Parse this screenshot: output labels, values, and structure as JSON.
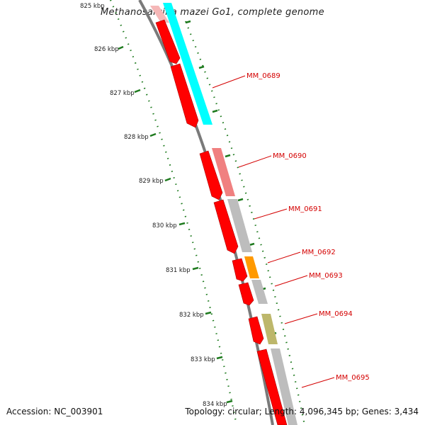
{
  "title": "Methanosarcina mazei Go1, complete genome",
  "footer": {
    "accession": "Accession: NC_003901",
    "summary": "Topology: circular; Length: 4,096,345 bp; Genes: 3,434"
  },
  "colors": {
    "cds": "#ff0000",
    "backbone": "#808080",
    "label": "#d40000",
    "tick": "#1e7a1e",
    "cog_cyan": "#00ffff",
    "cog_salmon": "#f08080",
    "cog_gray": "#bdbdbd",
    "cog_orange": "#ff9900",
    "cog_olive": "#bdb76b"
  },
  "ticks": [
    "825 kbp",
    "826 kbp",
    "827 kbp",
    "828 kbp",
    "829 kbp",
    "830 kbp",
    "831 kbp",
    "832 kbp",
    "833 kbp",
    "834 kbp"
  ],
  "genes": [
    {
      "label": "MM_0689",
      "cog_color": "#00ffff"
    },
    {
      "label": "MM_0690",
      "cog_color": "#f08080"
    },
    {
      "label": "MM_0691",
      "cog_color": "#bdbdbd"
    },
    {
      "label": "MM_0692",
      "cog_color": "#ff9900"
    },
    {
      "label": "MM_0693",
      "cog_color": "#bdbdbd"
    },
    {
      "label": "MM_0694",
      "cog_color": "#bdb76b"
    },
    {
      "label": "MM_0695",
      "cog_color": "#bdbdbd"
    }
  ]
}
